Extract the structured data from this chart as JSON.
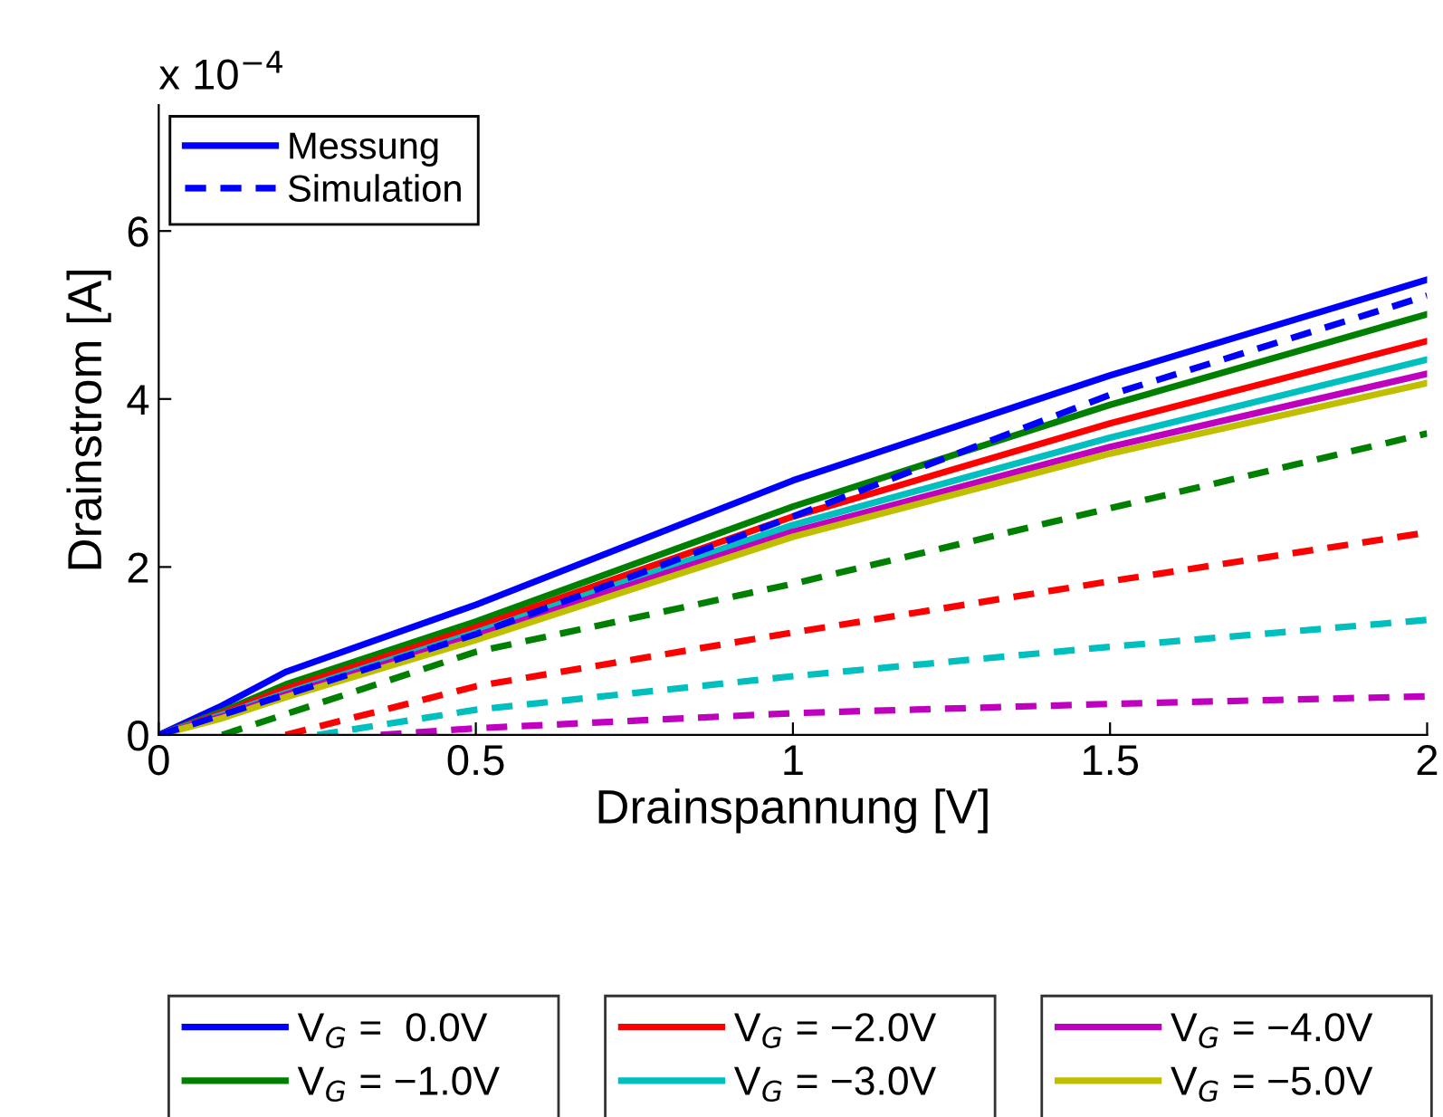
{
  "chart_data": {
    "type": "line",
    "xlabel": "Drainspannung [V]",
    "ylabel": "Drainstrom [A]",
    "annotations": [
      "x 10$^{−4}$",
      "Messung"
    ],
    "xlim": [
      0,
      2
    ],
    "ylim": [
      0,
      7.5
    ],
    "xticks": [
      0,
      {
        "value": 0.5,
        "label": "0.5"
      },
      1,
      {
        "value": 1.5,
        "label": "1.5"
      },
      2
    ],
    "yticks": [
      0,
      2,
      4,
      6
    ],
    "grid": false,
    "legend": "bottom",
    "line_style": "solid",
    "series": [
      {
        "name": "V$_{G}$ =  0.0V",
        "color": "#0000ff",
        "x": [
          0,
          0.1,
          0.2,
          0.5,
          1,
          1.5,
          2
        ],
        "values": [
          0,
          0.35,
          0.75,
          1.55,
          3.03,
          4.28,
          5.42
        ]
      },
      {
        "name": "V$_{G}$ = −1.0V",
        "color": "#008000",
        "x": [
          0,
          0.1,
          0.2,
          0.5,
          1,
          1.5,
          2
        ],
        "values": [
          0,
          0.28,
          0.6,
          1.35,
          2.72,
          3.93,
          5.01
        ]
      },
      {
        "name": "V$_{G}$ = −2.0V",
        "color": "#ff0000",
        "x": [
          0,
          0.1,
          0.2,
          0.5,
          1,
          1.5,
          2
        ],
        "values": [
          0,
          0.26,
          0.55,
          1.28,
          2.6,
          3.71,
          4.69
        ]
      },
      {
        "name": "V$_{G}$ = −3.0V",
        "color": "#00bfbf",
        "x": [
          0,
          0.1,
          0.2,
          0.5,
          1,
          1.5,
          2
        ],
        "values": [
          0,
          0.24,
          0.5,
          1.22,
          2.5,
          3.54,
          4.47
        ]
      },
      {
        "name": "V$_{G}$ = −4.0V",
        "color": "#bf00bf",
        "x": [
          0,
          0.1,
          0.2,
          0.5,
          1,
          1.5,
          2
        ],
        "values": [
          0,
          0.22,
          0.48,
          1.18,
          2.42,
          3.43,
          4.3
        ]
      },
      {
        "name": "V$_{G}$ = −5.0V",
        "color": "#bfbf00",
        "x": [
          0,
          0.1,
          0.2,
          0.5,
          1,
          1.5,
          2
        ],
        "values": [
          0,
          0.2,
          0.45,
          1.13,
          2.36,
          3.35,
          4.19
        ]
      },
      {
        "name": "Simulation",
        "color": "#0000ff",
        "line_style": "dashed",
        "x": [
          0,
          0.5,
          1,
          1.5,
          2
        ],
        "values": [
          0,
          1.2,
          2.6,
          4.05,
          5.23
        ]
      },
      {
        "color": "#008000",
        "line_style": "dashed",
        "x": [
          0.1,
          0.5,
          1,
          1.5,
          2
        ],
        "values": [
          0,
          0.99,
          1.8,
          2.7,
          3.59
        ]
      },
      {
        "color": "#ff0000",
        "line_style": "dashed",
        "x": [
          0.2,
          0.5,
          1,
          1.5,
          2
        ],
        "values": [
          0,
          0.58,
          1.22,
          1.83,
          2.41
        ]
      },
      {
        "color": "#00bfbf",
        "line_style": "dashed",
        "x": [
          0.25,
          0.5,
          1,
          1.5,
          2
        ],
        "values": [
          0,
          0.3,
          0.7,
          1.05,
          1.37
        ]
      },
      {
        "color": "#bf00bf",
        "line_style": "dashed",
        "x": [
          0.35,
          0.5,
          1,
          1.5,
          2
        ],
        "values": [
          0,
          0.08,
          0.26,
          0.37,
          0.46
        ]
      }
    ]
  }
}
